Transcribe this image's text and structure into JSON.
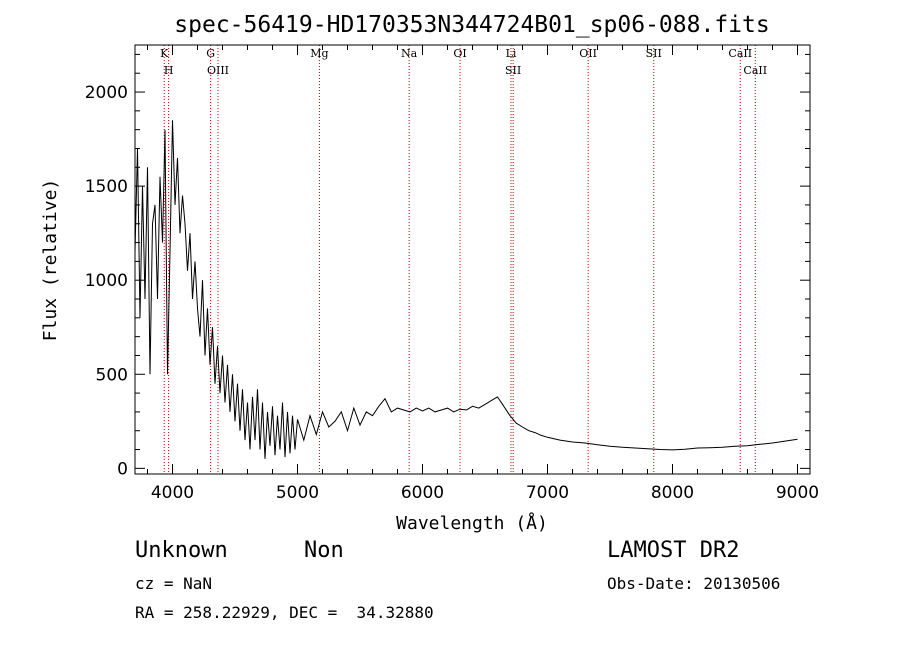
{
  "chart_data": {
    "type": "line",
    "title": "spec-56419-HD170353N344724B01_sp06-088.fits",
    "xlabel": "Wavelength (Å)",
    "ylabel": "Flux (relative)",
    "xlim": [
      3700,
      9100
    ],
    "ylim": [
      -30,
      2250
    ],
    "x_ticks": [
      4000,
      5000,
      6000,
      7000,
      8000,
      9000
    ],
    "y_ticks": [
      0,
      500,
      1000,
      1500,
      2000
    ],
    "grid": false,
    "series": [
      {
        "x": [
          3700,
          3720,
          3740,
          3760,
          3780,
          3800,
          3820,
          3840,
          3860,
          3880,
          3900,
          3920,
          3940,
          3960,
          3980,
          4000,
          4020,
          4040,
          4060,
          4080,
          4100,
          4120,
          4140,
          4160,
          4180,
          4200,
          4220,
          4240,
          4260,
          4280,
          4300,
          4320,
          4340,
          4360,
          4380,
          4400,
          4420,
          4440,
          4460,
          4480,
          4500,
          4520,
          4540,
          4560,
          4580,
          4600,
          4620,
          4640,
          4660,
          4680,
          4700,
          4720,
          4740,
          4760,
          4780,
          4800,
          4820,
          4840,
          4860,
          4880,
          4900,
          4920,
          4940,
          4960,
          4980,
          5000,
          5050,
          5100,
          5150,
          5200,
          5250,
          5300,
          5350,
          5400,
          5450,
          5500,
          5550,
          5600,
          5650,
          5700,
          5750,
          5800,
          5850,
          5900,
          5950,
          6000,
          6050,
          6100,
          6150,
          6200,
          6250,
          6300,
          6350,
          6400,
          6450,
          6500,
          6550,
          6600,
          6650,
          6700,
          6750,
          6800,
          6850,
          6900,
          6950,
          7000,
          7100,
          7200,
          7300,
          7400,
          7500,
          7600,
          7700,
          7800,
          7900,
          8000,
          8100,
          8200,
          8300,
          8400,
          8500,
          8600,
          8700,
          8800,
          8900,
          9000
        ],
        "y": [
          1150,
          1700,
          800,
          1500,
          900,
          1600,
          500,
          1300,
          1400,
          900,
          1550,
          1200,
          1800,
          500,
          1150,
          1850,
          1400,
          1650,
          1250,
          1450,
          1300,
          1050,
          1250,
          900,
          1100,
          850,
          700,
          1000,
          600,
          850,
          550,
          750,
          450,
          650,
          400,
          600,
          350,
          550,
          300,
          500,
          250,
          450,
          200,
          420,
          150,
          350,
          100,
          380,
          150,
          420,
          100,
          350,
          50,
          300,
          120,
          330,
          70,
          280,
          100,
          350,
          60,
          300,
          80,
          280,
          100,
          260,
          150,
          280,
          180,
          300,
          220,
          250,
          300,
          200,
          320,
          230,
          300,
          280,
          330,
          370,
          300,
          320,
          310,
          300,
          320,
          305,
          320,
          300,
          310,
          320,
          300,
          315,
          310,
          330,
          320,
          340,
          360,
          380,
          330,
          280,
          240,
          220,
          200,
          190,
          175,
          165,
          150,
          140,
          135,
          125,
          118,
          112,
          108,
          104,
          100,
          98,
          102,
          108,
          110,
          112,
          118,
          120,
          128,
          135,
          145,
          155
        ]
      }
    ],
    "spectral_lines": [
      {
        "name": "K",
        "wavelength": 3934
      },
      {
        "name": "H",
        "wavelength": 3969
      },
      {
        "name": "G",
        "wavelength": 4305
      },
      {
        "name": "OIII",
        "wavelength": 4364
      },
      {
        "name": "Mg",
        "wavelength": 5175
      },
      {
        "name": "Na",
        "wavelength": 5893
      },
      {
        "name": "OI",
        "wavelength": 6300
      },
      {
        "name": "Li",
        "wavelength": 6708
      },
      {
        "name": "SII",
        "wavelength": 6725
      },
      {
        "name": "OII",
        "wavelength": 7325
      },
      {
        "name": "SII",
        "wavelength": 7850
      },
      {
        "name": "CaII",
        "wavelength": 8542
      },
      {
        "name": "CaII",
        "wavelength": 8662
      }
    ]
  },
  "info": {
    "object_class": "Unknown",
    "object_subclass": "Non",
    "survey": "LAMOST DR2",
    "redshift": "cz = NaN",
    "obs_date": "Obs-Date: 20130506",
    "coords": "RA = 258.22929, DEC =  34.32880"
  },
  "colors": {
    "spectrum": "#000000",
    "line_markers": "#c00000"
  }
}
